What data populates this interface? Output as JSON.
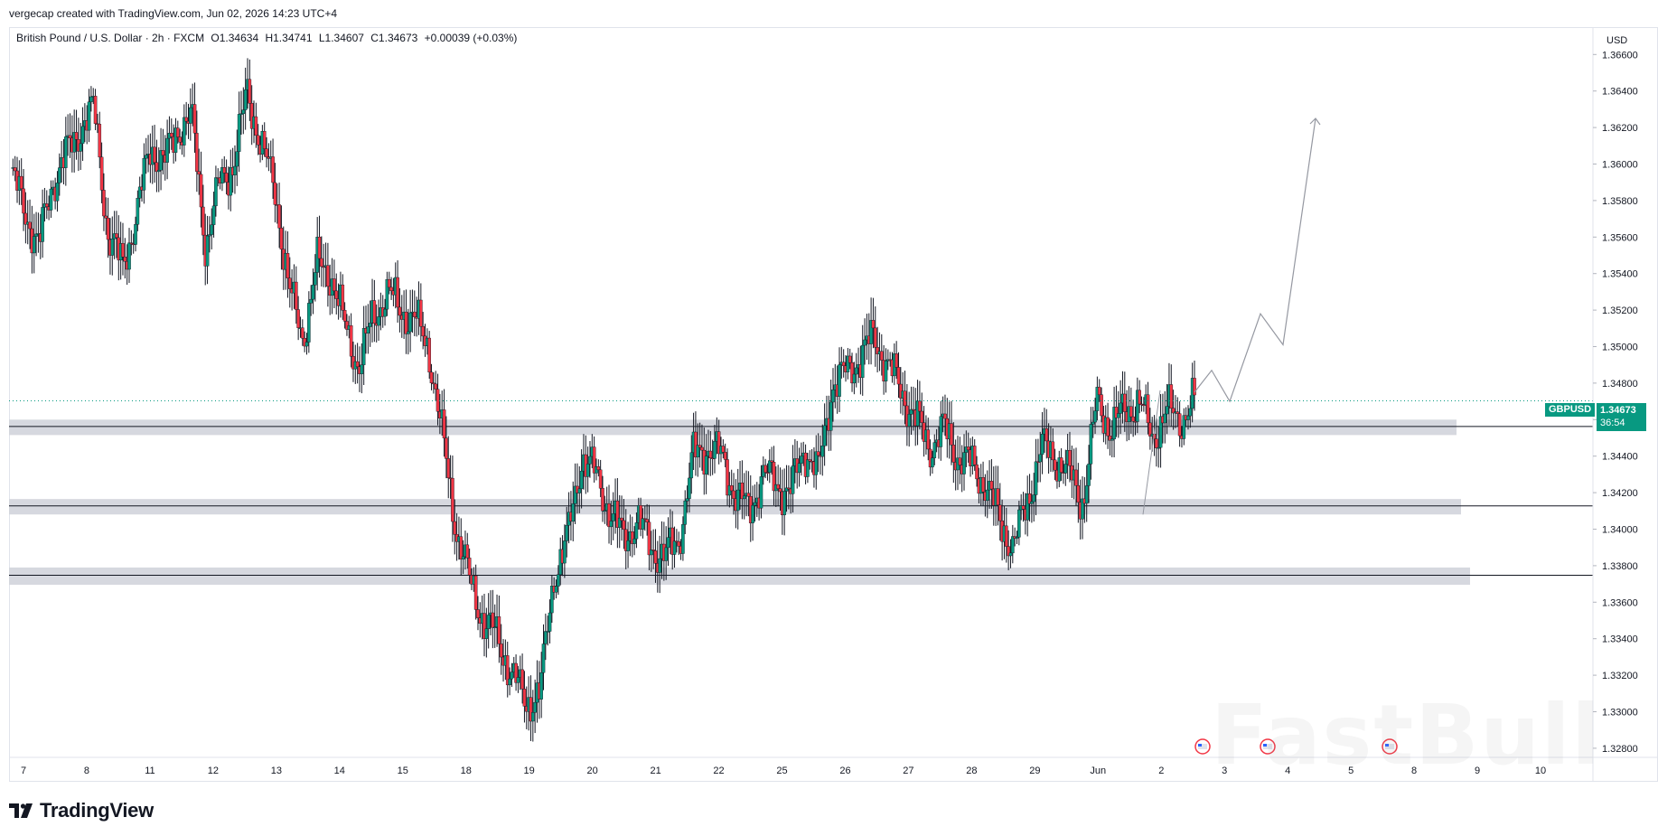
{
  "header": {
    "credit": "vergecap created with TradingView.com, Jun 02, 2026 14:23 UTC+4"
  },
  "legend": {
    "symbol": "British Pound / U.S. Dollar · 2h · FXCM",
    "open": "O1.34634",
    "high": "H1.34741",
    "low": "L1.34607",
    "close": "C1.34673",
    "change": "+0.00039 (+0.03%)"
  },
  "price_tag": {
    "symbol": "GBPUSD",
    "price": "1.34673",
    "countdown": "36:54"
  },
  "branding": {
    "logo_text": "TradingView",
    "watermark": "FastBull"
  },
  "colors": {
    "up": "#089981",
    "down": "#f23645",
    "zone": "#d1d4dc",
    "projection": "#9598a1"
  },
  "chart_data": {
    "type": "candlestick",
    "currency_label": "USD",
    "y_ticks": [
      "1.36600",
      "1.36400",
      "1.36200",
      "1.36000",
      "1.35800",
      "1.35600",
      "1.35400",
      "1.35200",
      "1.35000",
      "1.34800",
      "1.34600",
      "1.34400",
      "1.34200",
      "1.34000",
      "1.33800",
      "1.33600",
      "1.33400",
      "1.33200",
      "1.33000",
      "1.32800"
    ],
    "ylim": [
      1.3275,
      1.3675
    ],
    "x_ticks": [
      "7",
      "8",
      "11",
      "12",
      "13",
      "14",
      "15",
      "18",
      "19",
      "20",
      "21",
      "22",
      "25",
      "26",
      "27",
      "28",
      "29",
      "Jun",
      "2",
      "3",
      "4",
      "5",
      "8",
      "9",
      "10"
    ],
    "path_points": [
      [
        0,
        1.3595
      ],
      [
        1,
        1.3575
      ],
      [
        2,
        1.3555
      ],
      [
        3,
        1.359
      ],
      [
        4,
        1.3605
      ],
      [
        5,
        1.362
      ],
      [
        6,
        1.363
      ],
      [
        7,
        1.356
      ],
      [
        8,
        1.3545
      ],
      [
        9,
        1.357
      ],
      [
        10,
        1.361
      ],
      [
        11,
        1.36
      ],
      [
        12,
        1.362
      ],
      [
        13,
        1.3625
      ],
      [
        14,
        1.3555
      ],
      [
        15,
        1.359
      ],
      [
        16,
        1.36
      ],
      [
        17,
        1.364
      ],
      [
        18,
        1.361
      ],
      [
        19,
        1.3585
      ],
      [
        20,
        1.353
      ],
      [
        21,
        1.3505
      ],
      [
        22,
        1.3545
      ],
      [
        23,
        1.354
      ],
      [
        24,
        1.351
      ],
      [
        25,
        1.349
      ],
      [
        26,
        1.3515
      ],
      [
        27,
        1.353
      ],
      [
        28,
        1.352
      ],
      [
        29,
        1.3515
      ],
      [
        30,
        1.35
      ],
      [
        31,
        1.345
      ],
      [
        32,
        1.34
      ],
      [
        33,
        1.337
      ],
      [
        34,
        1.335
      ],
      [
        35,
        1.334
      ],
      [
        36,
        1.332
      ],
      [
        37,
        1.3305
      ],
      [
        38,
        1.331
      ],
      [
        39,
        1.3375
      ],
      [
        40,
        1.3395
      ],
      [
        41,
        1.344
      ],
      [
        42,
        1.343
      ],
      [
        43,
        1.341
      ],
      [
        44,
        1.3395
      ],
      [
        45,
        1.3405
      ],
      [
        46,
        1.339
      ],
      [
        47,
        1.3385
      ],
      [
        48,
        1.3395
      ],
      [
        49,
        1.344
      ],
      [
        50,
        1.3445
      ],
      [
        51,
        1.344
      ],
      [
        52,
        1.342
      ],
      [
        53,
        1.341
      ],
      [
        54,
        1.343
      ],
      [
        55,
        1.3425
      ],
      [
        56,
        1.342
      ],
      [
        57,
        1.3445
      ],
      [
        58,
        1.343
      ],
      [
        59,
        1.348
      ],
      [
        60,
        1.3485
      ],
      [
        61,
        1.3495
      ],
      [
        62,
        1.3505
      ],
      [
        63,
        1.349
      ],
      [
        64,
        1.3475
      ],
      [
        65,
        1.346
      ],
      [
        66,
        1.3445
      ],
      [
        67,
        1.3455
      ],
      [
        68,
        1.344
      ],
      [
        69,
        1.3435
      ],
      [
        70,
        1.3425
      ],
      [
        71,
        1.3405
      ],
      [
        72,
        1.339
      ],
      [
        73,
        1.3415
      ],
      [
        74,
        1.3445
      ],
      [
        75,
        1.344
      ],
      [
        76,
        1.343
      ],
      [
        77,
        1.3415
      ],
      [
        78,
        1.347
      ],
      [
        79,
        1.3455
      ],
      [
        80,
        1.3465
      ],
      [
        81,
        1.347
      ],
      [
        82,
        1.345
      ],
      [
        83,
        1.3465
      ],
      [
        84,
        1.346
      ],
      [
        85,
        1.347
      ]
    ],
    "zones": [
      {
        "top": 1.346,
        "bottom": 1.34565
      },
      {
        "top": 1.34165,
        "bottom": 1.3413
      },
      {
        "top": 1.3379,
        "bottom": 1.33745
      }
    ],
    "projection_path": [
      [
        0,
        1.3475
      ],
      [
        1,
        1.3487
      ],
      [
        2,
        1.347
      ],
      [
        3,
        1.3518
      ],
      [
        4,
        1.3501
      ],
      [
        5,
        1.3625
      ]
    ]
  }
}
